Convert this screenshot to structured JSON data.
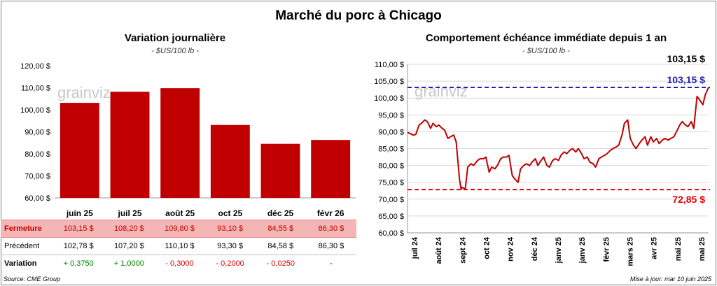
{
  "title": "Marché du porc à Chicago",
  "left_panel": {
    "title": "Variation journalière",
    "subtitle": "- $US/100 lb -"
  },
  "right_panel": {
    "title": "Comportement échéance immédiate depuis 1 an",
    "subtitle": "- $US/100 lb -",
    "last_value_label": "103,15 $",
    "high_line_label": "103,15 $",
    "low_line_label": "72,85 $"
  },
  "watermark": "grainviz",
  "table": {
    "rows": [
      {
        "label": "Fermeture",
        "values": [
          "103,15  $",
          "108,20  $",
          "109,80  $",
          "93,10  $",
          "84,55  $",
          "86,30  $"
        ]
      },
      {
        "label": "Précédent",
        "values": [
          "102,78  $",
          "107,20  $",
          "110,10  $",
          "93,30  $",
          "84,58  $",
          "86,30  $"
        ]
      },
      {
        "label": "Variation",
        "values": [
          "+ 0,3750",
          "+ 1,0000",
          "- 0,3000",
          "- 0,2000",
          "- 0,0250",
          "-"
        ]
      }
    ]
  },
  "source": "Source: CME Group",
  "updated": "Mise à jour: mar 10 juin 2025",
  "colors": {
    "bar": "#c00000",
    "line": "#c00000",
    "high_line": "#1f1fb4",
    "low_line": "#e00000",
    "positive": "#008000",
    "negative": "#e00000"
  },
  "chart_data": [
    {
      "type": "bar",
      "categories": [
        "juin 25",
        "juil 25",
        "août 25",
        "oct 25",
        "déc 25",
        "févr 26"
      ],
      "values": [
        103.15,
        108.2,
        109.8,
        93.1,
        84.55,
        86.3
      ],
      "ylim": [
        60,
        120
      ],
      "yticks": [
        60,
        70,
        80,
        90,
        100,
        110,
        120
      ],
      "ytick_labels": [
        "60,00 $",
        "70,00 $",
        "80,00 $",
        "90,00 $",
        "100,00 $",
        "110,00 $",
        "120,00 $"
      ],
      "title": "Variation journalière",
      "ylabel": "$US/100 lb",
      "grid": false
    },
    {
      "type": "line",
      "ylim": [
        60,
        110
      ],
      "yticks": [
        60,
        65,
        70,
        75,
        80,
        85,
        90,
        95,
        100,
        105,
        110
      ],
      "ytick_labels": [
        "60,00 $",
        "65,00 $",
        "70,00 $",
        "75,00 $",
        "80,00 $",
        "85,00 $",
        "90,00 $",
        "95,00 $",
        "100,00 $",
        "105,00 $",
        "110,00 $"
      ],
      "xtick_labels": [
        "juil 24",
        "août 24",
        "sept 24",
        "oct 24",
        "nov 24",
        "déc 24",
        "janv 25",
        "janv 25",
        "févr 25",
        "mars 25",
        "avr 25",
        "mai 25",
        "mai 25"
      ],
      "x_start": "2024-06-10",
      "x_end": "2025-06-10",
      "x": [
        "2024-06-10",
        "2024-06-13",
        "2024-06-17",
        "2024-06-20",
        "2024-06-24",
        "2024-06-27",
        "2024-07-01",
        "2024-07-04",
        "2024-07-08",
        "2024-07-11",
        "2024-07-15",
        "2024-07-18",
        "2024-07-22",
        "2024-07-25",
        "2024-07-29",
        "2024-08-01",
        "2024-08-05",
        "2024-08-08",
        "2024-08-12",
        "2024-08-14",
        "2024-08-15",
        "2024-08-19",
        "2024-08-22",
        "2024-08-26",
        "2024-08-29",
        "2024-09-03",
        "2024-09-06",
        "2024-09-10",
        "2024-09-13",
        "2024-09-17",
        "2024-09-20",
        "2024-09-24",
        "2024-09-27",
        "2024-10-01",
        "2024-10-04",
        "2024-10-08",
        "2024-10-11",
        "2024-10-15",
        "2024-10-18",
        "2024-10-22",
        "2024-10-25",
        "2024-10-29",
        "2024-11-01",
        "2024-11-05",
        "2024-11-08",
        "2024-11-12",
        "2024-11-15",
        "2024-11-19",
        "2024-11-22",
        "2024-11-26",
        "2024-11-29",
        "2024-12-03",
        "2024-12-06",
        "2024-12-10",
        "2024-12-13",
        "2024-12-17",
        "2024-12-20",
        "2024-12-24",
        "2024-12-27",
        "2024-12-31",
        "2025-01-03",
        "2025-01-07",
        "2025-01-10",
        "2025-01-14",
        "2025-01-17",
        "2025-01-21",
        "2025-01-24",
        "2025-01-28",
        "2025-01-31",
        "2025-02-04",
        "2025-02-07",
        "2025-02-11",
        "2025-02-14",
        "2025-02-18",
        "2025-02-21",
        "2025-02-25",
        "2025-02-28",
        "2025-03-04",
        "2025-03-07",
        "2025-03-11",
        "2025-03-14",
        "2025-03-18",
        "2025-03-21",
        "2025-03-25",
        "2025-03-28",
        "2025-04-01",
        "2025-04-04",
        "2025-04-08",
        "2025-04-11",
        "2025-04-15",
        "2025-04-18",
        "2025-04-22",
        "2025-04-25",
        "2025-04-29",
        "2025-05-02",
        "2025-05-06",
        "2025-05-09",
        "2025-05-13",
        "2025-05-16",
        "2025-05-20",
        "2025-05-23",
        "2025-05-27",
        "2025-05-30",
        "2025-06-03",
        "2025-06-06",
        "2025-06-10"
      ],
      "series": [
        {
          "values": [
            89.8,
            89.5,
            89.0,
            89.2,
            92.0,
            92.5,
            93.5,
            93.0,
            91.0,
            92.5,
            91.5,
            92.0,
            91.0,
            90.5,
            88.0,
            88.5,
            89.0,
            87.0,
            76.0,
            72.9,
            73.5,
            73.0,
            79.5,
            80.5,
            80.0,
            81.5,
            82.0,
            82.0,
            82.5,
            78.0,
            79.5,
            79.0,
            80.0,
            82.0,
            82.5,
            82.5,
            83.0,
            77.0,
            76.0,
            75.0,
            79.0,
            80.0,
            80.5,
            80.0,
            81.0,
            82.0,
            80.0,
            81.5,
            82.5,
            80.0,
            79.5,
            81.5,
            82.0,
            81.5,
            83.0,
            84.0,
            83.5,
            84.5,
            85.0,
            84.0,
            85.0,
            83.5,
            82.0,
            82.5,
            81.0,
            80.5,
            79.5,
            82.0,
            82.5,
            83.0,
            83.5,
            84.5,
            85.0,
            85.5,
            86.0,
            89.0,
            92.5,
            93.5,
            88.0,
            86.0,
            85.0,
            86.5,
            87.5,
            88.5,
            86.0,
            88.5,
            87.0,
            88.0,
            86.5,
            87.5,
            88.0,
            87.5,
            88.0,
            88.5,
            90.0,
            92.0,
            93.0,
            92.0,
            91.5,
            93.0,
            91.0,
            100.5,
            99.5,
            98.0,
            101.0,
            103.15
          ]
        }
      ],
      "reference_lines": [
        {
          "value": 103.15,
          "label": "103,15 $",
          "color": "#1f1fb4",
          "style": "dashed"
        },
        {
          "value": 72.85,
          "label": "72,85 $",
          "color": "#e00000",
          "style": "dashed"
        }
      ],
      "last_value": 103.15,
      "title": "Comportement échéance immédiate depuis 1 an",
      "ylabel": "$US/100 lb",
      "grid": true
    }
  ]
}
